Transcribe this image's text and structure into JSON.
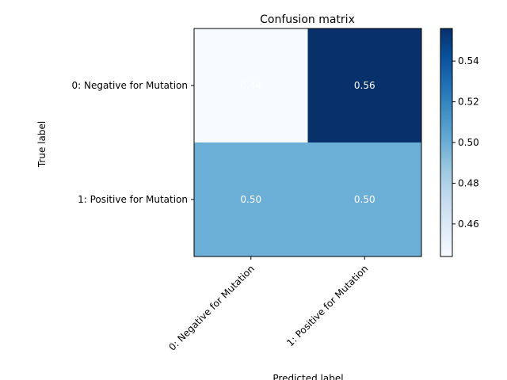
{
  "chart_data": {
    "type": "heatmap",
    "title": "Confusion matrix",
    "xlabel": "Predicted label",
    "ylabel": "True label",
    "x_categories": [
      "0: Negative for Mutation",
      "1: Positive for Mutation"
    ],
    "y_categories": [
      "0: Negative for Mutation",
      "1: Positive for Mutation"
    ],
    "values": [
      [
        0.44,
        0.56
      ],
      [
        0.5,
        0.5
      ]
    ],
    "cell_labels": [
      [
        "0.44",
        "0.56"
      ],
      [
        "0.50",
        "0.50"
      ]
    ],
    "colormap": "Blues",
    "colorbar": {
      "range": [
        0.444,
        0.556
      ],
      "ticks": [
        0.46,
        0.48,
        0.5,
        0.52,
        0.54
      ],
      "tick_labels": [
        "0.46",
        "0.48",
        "0.50",
        "0.52",
        "0.54"
      ]
    },
    "cell_text_color": "#ffffff",
    "grid": false,
    "legend": "colorbar-right"
  }
}
